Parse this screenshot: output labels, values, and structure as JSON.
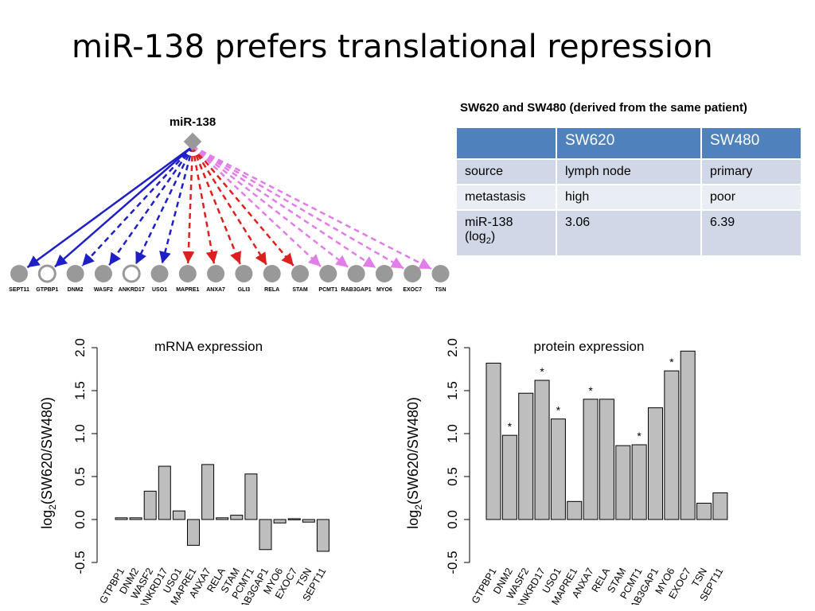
{
  "slide": {
    "title": "miR-138 prefers translational repression"
  },
  "network": {
    "hub_label": "miR-138",
    "hub_color": "#999999",
    "targets": [
      {
        "name": "SEPT11",
        "fill": "filled",
        "edge": "solid-blue"
      },
      {
        "name": "GTPBP1",
        "fill": "hollow",
        "edge": "solid-blue"
      },
      {
        "name": "DNM2",
        "fill": "filled",
        "edge": "dashed-blue"
      },
      {
        "name": "WASF2",
        "fill": "filled",
        "edge": "dashed-blue"
      },
      {
        "name": "ANKRD17",
        "fill": "hollow",
        "edge": "dashed-blue"
      },
      {
        "name": "USO1",
        "fill": "filled",
        "edge": "dashed-blue"
      },
      {
        "name": "MAPRE1",
        "fill": "filled",
        "edge": "dashed-red"
      },
      {
        "name": "ANXA7",
        "fill": "filled",
        "edge": "dashed-red"
      },
      {
        "name": "GLI3",
        "fill": "filled",
        "edge": "dashed-red"
      },
      {
        "name": "RELA",
        "fill": "filled",
        "edge": "dashed-red"
      },
      {
        "name": "STAM",
        "fill": "filled",
        "edge": "dashed-red"
      },
      {
        "name": "PCMT1",
        "fill": "filled",
        "edge": "dashed-pink"
      },
      {
        "name": "RAB3GAP1",
        "fill": "filled",
        "edge": "dashed-pink"
      },
      {
        "name": "MYO6",
        "fill": "filled",
        "edge": "dashed-pink"
      },
      {
        "name": "EXOC7",
        "fill": "filled",
        "edge": "dashed-pink"
      },
      {
        "name": "TSN",
        "fill": "filled",
        "edge": "dashed-pink"
      }
    ],
    "edge_colors": {
      "solid-blue": "#1f1fc8",
      "dashed-blue": "#1f1fc8",
      "dashed-red": "#dd1f1f",
      "dashed-pink": "#e27ce8"
    }
  },
  "table": {
    "caption": "SW620 and SW480 (derived from the same patient)",
    "header": [
      "",
      "SW620",
      "SW480"
    ],
    "rows": [
      {
        "label": "source",
        "sw620": "lymph node",
        "sw480": "primary"
      },
      {
        "label": "metastasis",
        "sw620": "high",
        "sw480": "poor"
      },
      {
        "label": "miR-138",
        "label_sub_prefix": "(log",
        "label_sub": "2",
        "label_sub_suffix": ")",
        "sw620": "3.06",
        "sw480": "6.39"
      }
    ],
    "colors": {
      "header": "#4f81bd",
      "row_odd": "#d0d8e8",
      "row_even": "#e9edf4"
    }
  },
  "chart_data": [
    {
      "type": "bar",
      "title": "mRNA expression",
      "ylabel_main": "log",
      "ylabel_sub": "2",
      "ylabel_rest": "(SW620/SW480)",
      "ylim": [
        -0.5,
        2.0
      ],
      "yticks": [
        "-0.5",
        "0.0",
        "0.5",
        "1.0",
        "1.5",
        "2.0"
      ],
      "categories": [
        "GTPBP1",
        "DNM2",
        "WASF2",
        "ANKRD17",
        "USO1",
        "MAPRE1",
        "ANXA7",
        "RELA",
        "STAM",
        "PCMT1",
        "RAB3GAP1",
        "MYO6",
        "EXOC7",
        "TSN",
        "SEPT11"
      ],
      "values": [
        0.02,
        0.02,
        0.33,
        0.62,
        0.1,
        -0.3,
        0.64,
        0.02,
        0.05,
        0.53,
        -0.35,
        -0.04,
        0.01,
        -0.03,
        -0.37
      ],
      "significant": [],
      "grid": false,
      "bar_color": "#bebebe"
    },
    {
      "type": "bar",
      "title": "protein expression",
      "ylabel_main": "log",
      "ylabel_sub": "2",
      "ylabel_rest": "(SW620/SW480)",
      "ylim": [
        -0.5,
        2.0
      ],
      "yticks": [
        "-0.5",
        "0.0",
        "0.5",
        "1.0",
        "1.5",
        "2.0"
      ],
      "categories": [
        "GTPBP1",
        "DNM2",
        "WASF2",
        "ANKRD17",
        "USO1",
        "MAPRE1",
        "ANXA7",
        "RELA",
        "STAM",
        "PCMT1",
        "RAB3GAP1",
        "MYO6",
        "EXOC7",
        "TSN",
        "SEPT11"
      ],
      "values": [
        1.82,
        0.98,
        1.47,
        1.62,
        1.17,
        0.21,
        1.4,
        1.4,
        0.86,
        0.87,
        1.3,
        1.73,
        1.96,
        0.19,
        0.31
      ],
      "significant": [
        "",
        "*",
        "",
        "*",
        "*",
        "",
        "*",
        "",
        "",
        "*",
        "",
        "*",
        "",
        "",
        ""
      ],
      "grid": false,
      "bar_color": "#bebebe"
    }
  ]
}
